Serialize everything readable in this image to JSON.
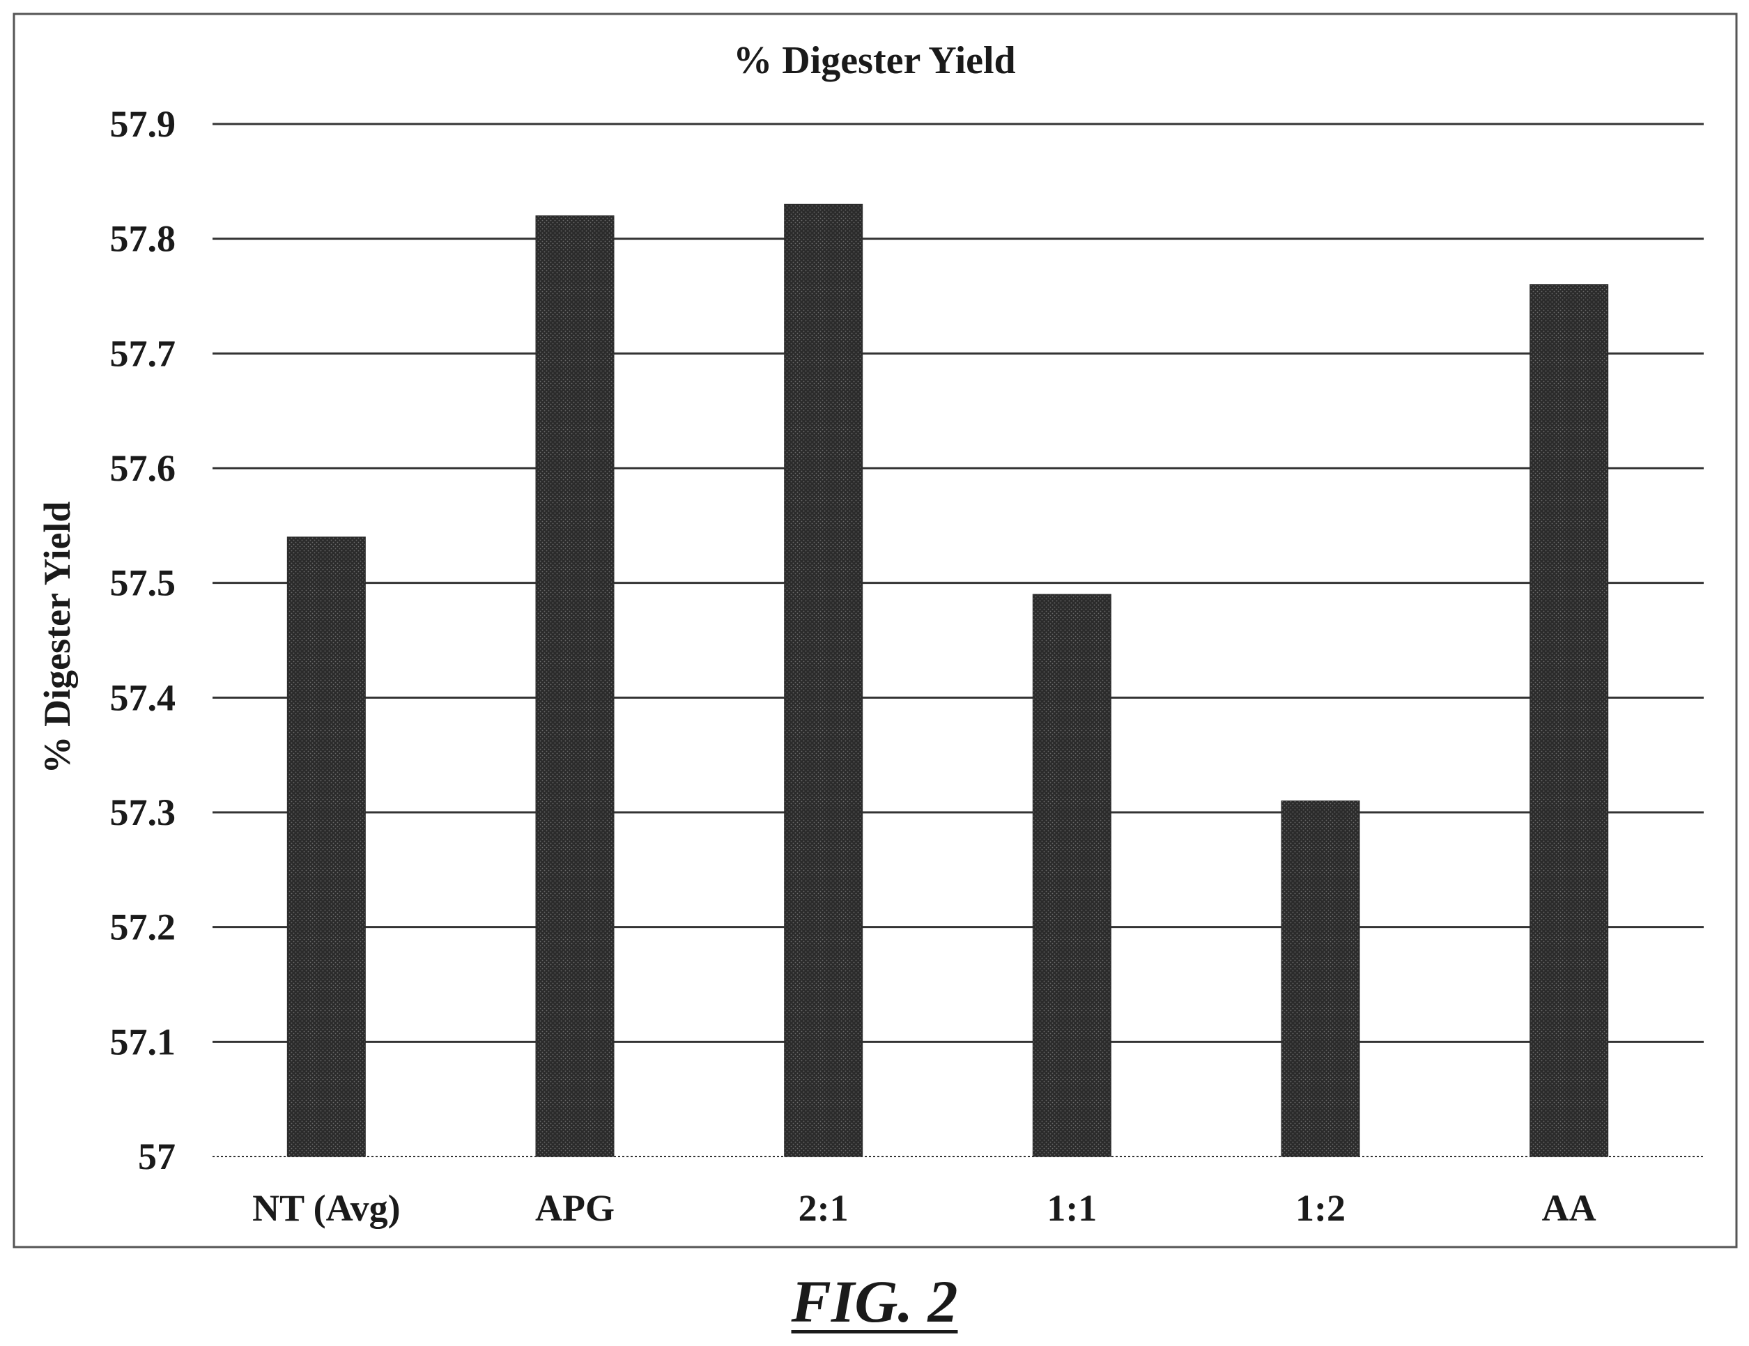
{
  "figure": {
    "caption": "FIG. 2"
  },
  "colors": {
    "bar": "#2b2b2b",
    "grid": "#333333",
    "frame": "#555555",
    "text": "#1a1a1a"
  },
  "chart_data": {
    "type": "bar",
    "title": "% Digester Yield",
    "xlabel": "",
    "ylabel": "% Digester Yield",
    "categories": [
      "NT (Avg)",
      "APG",
      "2:1",
      "1:1",
      "1:2",
      "AA"
    ],
    "values": [
      57.54,
      57.82,
      57.83,
      57.49,
      57.31,
      57.76
    ],
    "ylim": [
      57,
      57.9
    ],
    "yticks": [
      57,
      57.1,
      57.2,
      57.3,
      57.4,
      57.5,
      57.6,
      57.7,
      57.8,
      57.9
    ],
    "ytick_labels": [
      "57",
      "57.1",
      "57.2",
      "57.3",
      "57.4",
      "57.5",
      "57.6",
      "57.7",
      "57.8",
      "57.9"
    ],
    "grid": true,
    "legend": "none"
  }
}
